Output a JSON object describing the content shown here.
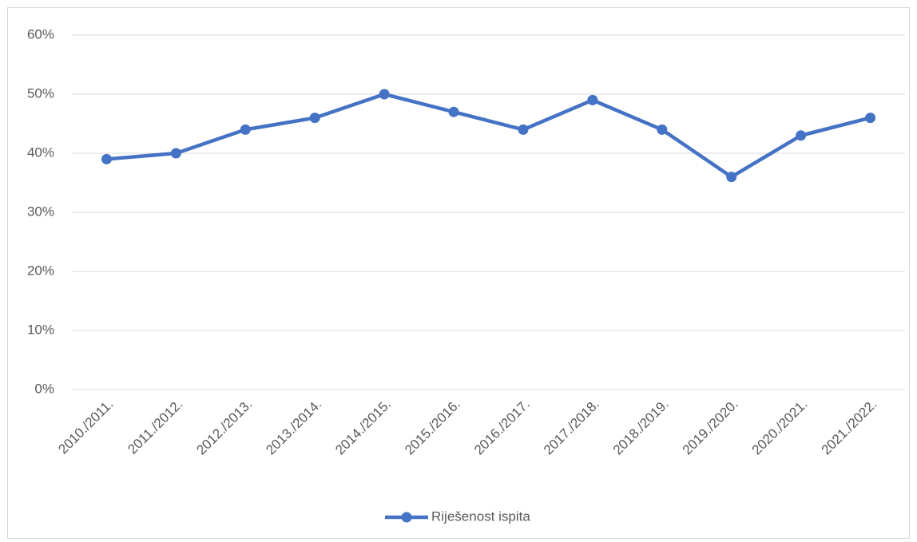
{
  "chart_data": {
    "type": "line",
    "categories": [
      "2010./2011.",
      "2011./2012.",
      "2012./2013.",
      "2013./2014.",
      "2014./2015.",
      "2015./2016.",
      "2016./2017.",
      "2017./2018.",
      "2018./2019.",
      "2019./2020.",
      "2020./2021.",
      "2021./2022."
    ],
    "series": [
      {
        "name": "Riješenost ispita",
        "color": "#4472c4",
        "values": [
          39,
          40,
          44,
          46,
          50,
          47,
          44,
          49,
          44,
          36,
          43,
          46
        ]
      }
    ],
    "ylim": [
      0,
      60
    ],
    "yticks": [
      {
        "value": 0,
        "label": "0%"
      },
      {
        "value": 10,
        "label": "10%"
      },
      {
        "value": 20,
        "label": "20%"
      },
      {
        "value": 30,
        "label": "30%"
      },
      {
        "value": 40,
        "label": "40%"
      },
      {
        "value": 50,
        "label": "50%"
      },
      {
        "value": 60,
        "label": "60%"
      }
    ],
    "grid": true,
    "legend": "bottom"
  }
}
